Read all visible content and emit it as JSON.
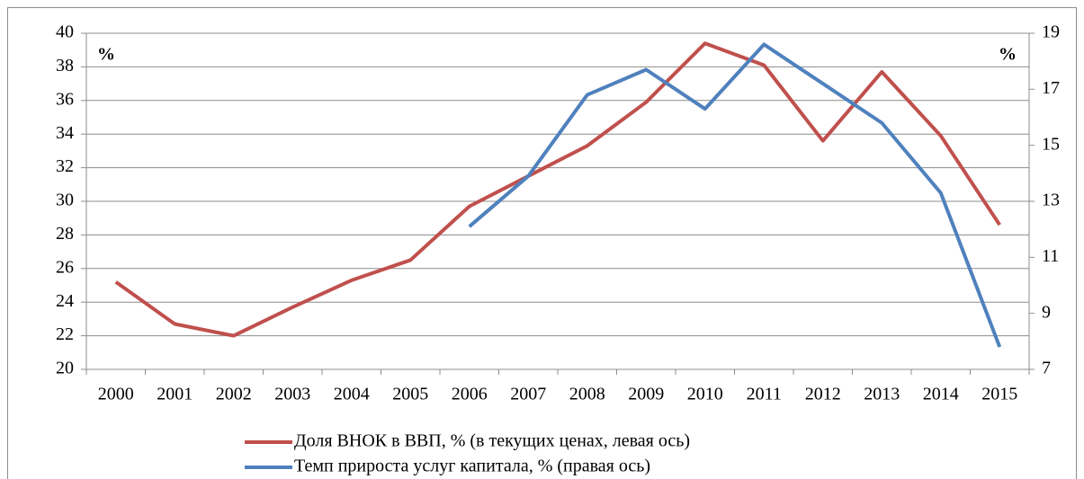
{
  "chart_data": {
    "type": "line",
    "categories": [
      "2000",
      "2001",
      "2002",
      "2003",
      "2004",
      "2005",
      "2006",
      "2007",
      "2008",
      "2009",
      "2010",
      "2011",
      "2012",
      "2013",
      "2014",
      "2015"
    ],
    "series": [
      {
        "name": "Доля ВНОК в ВВП, % (в текущих ценах, левая ось)",
        "color": "#c0504d",
        "values": [
          25.2,
          22.7,
          22.0,
          23.7,
          25.3,
          26.5,
          29.7,
          31.5,
          33.3,
          35.9,
          39.4,
          38.1,
          33.6,
          37.7,
          33.9,
          28.6
        ]
      },
      {
        "name": "Темп прироста услуг капитала, % (правая ось)",
        "color": "#4f81bd",
        "axis": "y2",
        "values": [
          null,
          null,
          null,
          null,
          null,
          null,
          12.1,
          13.9,
          16.8,
          17.7,
          16.3,
          18.6,
          17.2,
          15.8,
          13.3,
          7.8
        ]
      }
    ],
    "ylim": [
      20,
      40
    ],
    "yticks": [
      20,
      22,
      24,
      26,
      28,
      30,
      32,
      34,
      36,
      38,
      40
    ],
    "y2lim": [
      7,
      19
    ],
    "y2ticks": [
      7,
      9,
      11,
      13,
      15,
      17,
      19
    ],
    "y_unit_label": "%",
    "y2_unit_label": "%",
    "grid": true,
    "legend": "bottom"
  }
}
